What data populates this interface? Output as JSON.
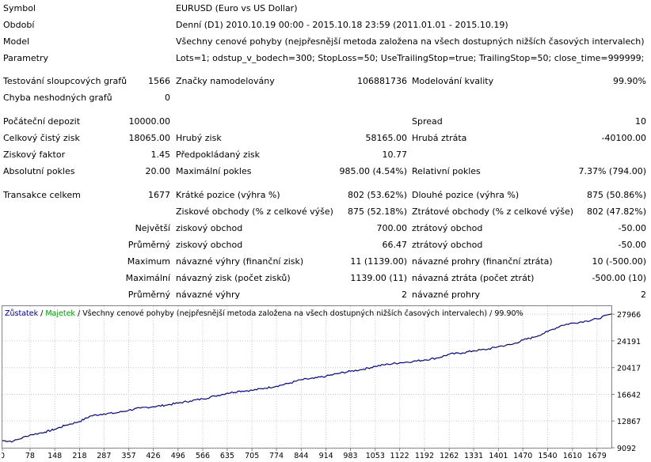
{
  "report": {
    "symbol_label": "Symbol",
    "symbol_value": "EURUSD (Euro vs US Dollar)",
    "period_label": "Období",
    "period_value": "Denní (D1) 2010.10.19 00:00 - 2015.10.18 23:59 (2011.01.01 - 2015.10.19)",
    "model_label": "Model",
    "model_value": "Všechny cenové pohyby (nejpřesnější metoda založena na všech dostupných nižších časových intervalech)",
    "params_label": "Parametry",
    "params_value": "Lots=1; odstup_v_bodech=300; StopLoss=50; UseTrailingStop=true; TrailingStop=50; close_time=999999;",
    "bars_label": "Testování sloupcových grafů",
    "bars_value": "1566",
    "ticks_label": "Značky namodelovány",
    "ticks_value": "106881736",
    "quality_label": "Modelování kvality",
    "quality_value": "99.90%",
    "mismatch_label": "Chyba neshodných grafů",
    "mismatch_value": "0",
    "deposit_label": "Počáteční depozit",
    "deposit_value": "10000.00",
    "spread_label": "Spread",
    "spread_value": "10",
    "net_label": "Celkový čistý zisk",
    "net_value": "18065.00",
    "gross_profit_label": "Hrubý zisk",
    "gross_profit_value": "58165.00",
    "gross_loss_label": "Hrubá ztráta",
    "gross_loss_value": "-40100.00",
    "pf_label": "Ziskový faktor",
    "pf_value": "1.45",
    "payoff_label": "Předpokládaný zisk",
    "payoff_value": "10.77",
    "abs_dd_label": "Absolutní pokles",
    "abs_dd_value": "20.00",
    "max_dd_label": "Maximální pokles",
    "max_dd_value": "985.00 (4.54%)",
    "rel_dd_label": "Relativní pokles",
    "rel_dd_value": "7.37% (794.00)",
    "trades_label": "Transakce celkem",
    "trades_value": "1677",
    "short_label": "Krátké pozice (výhra %)",
    "short_value": "802 (53.62%)",
    "long_label": "Dlouhé pozice (výhra %)",
    "long_value": "875 (50.86%)",
    "profit_trades_label": "Ziskové obchody (% z celkové výše)",
    "profit_trades_value": "875 (52.18%)",
    "loss_trades_label": "Ztrátové obchody (% z celkové výše)",
    "loss_trades_value": "802 (47.82%)",
    "largest_label": "Největší",
    "largest_profit_label": "ziskový obchod",
    "largest_profit_value": "700.00",
    "largest_loss_label": "ztrátový obchod",
    "largest_loss_value": "-50.00",
    "average_label": "Průměrný",
    "average_profit_label": "ziskový obchod",
    "average_profit_value": "66.47",
    "average_loss_label": "ztrátový obchod",
    "average_loss_value": "-50.00",
    "maximum_label": "Maximum",
    "max_cons_wins_label": "návazné výhry (finanční zisk)",
    "max_cons_wins_value": "11 (1139.00)",
    "max_cons_losses_label": "návazné prohry (finanční ztráta)",
    "max_cons_losses_value": "10 (-500.00)",
    "maximal_label": "Maximální",
    "maximal_profit_label": "návazný zisk (počet zisků)",
    "maximal_profit_value": "1139.00 (11)",
    "maximal_loss_label": "návazná ztráta (počet ztrát)",
    "maximal_loss_value": "-500.00 (10)",
    "avg_cons_label": "Průměrný",
    "avg_wins_label": "návazné výhry",
    "avg_wins_value": "2",
    "avg_losses_label": "návazné prohry",
    "avg_losses_value": "2"
  },
  "chart_data": {
    "type": "line",
    "legend": {
      "balance": "Zůstatek",
      "sep1": " / ",
      "equity": "Majetek",
      "sep2": " / ",
      "model": "Všechny cenové pohyby (nejpřesnější metoda založena na všech dostupných nižších časových intervalech)",
      "sep3": " / ",
      "quality": "99.90%"
    },
    "colors": {
      "balance": "#0000a0",
      "equity": "#00a000",
      "grid": "#c8c8c8",
      "border": "#808080"
    },
    "ylim": [
      9092,
      29100
    ],
    "xlim": [
      0,
      1720
    ],
    "yticks": [
      9092,
      12867,
      16642,
      20417,
      24191,
      27966
    ],
    "xticks": [
      0,
      78,
      148,
      218,
      287,
      357,
      426,
      496,
      566,
      635,
      705,
      774,
      844,
      914,
      983,
      1053,
      1122,
      1192,
      1262,
      1331,
      1401,
      1470,
      1540,
      1610,
      1679
    ],
    "series": [
      {
        "x": [
          0,
          30,
          78,
          120,
          148,
          180,
          218,
          250,
          287,
          320,
          357,
          390,
          426,
          460,
          496,
          530,
          566,
          600,
          635,
          670,
          705,
          740,
          774,
          810,
          844,
          880,
          914,
          950,
          983,
          1020,
          1053,
          1090,
          1122,
          1160,
          1192,
          1230,
          1262,
          1300,
          1331,
          1370,
          1401,
          1440,
          1470,
          1500,
          1540,
          1580,
          1610,
          1650,
          1679,
          1720
        ],
        "y": [
          10100,
          10000,
          10900,
          11300,
          11700,
          12300,
          12800,
          13600,
          13900,
          14000,
          14400,
          14700,
          14900,
          15100,
          15400,
          15700,
          16000,
          16400,
          16800,
          17100,
          17200,
          17500,
          17800,
          18200,
          18700,
          18900,
          19200,
          19600,
          19900,
          20200,
          20600,
          20900,
          21100,
          21300,
          21500,
          21800,
          22300,
          22500,
          22800,
          23000,
          23400,
          23700,
          24300,
          24700,
          25500,
          26400,
          26700,
          27000,
          27300,
          28000
        ]
      }
    ]
  }
}
